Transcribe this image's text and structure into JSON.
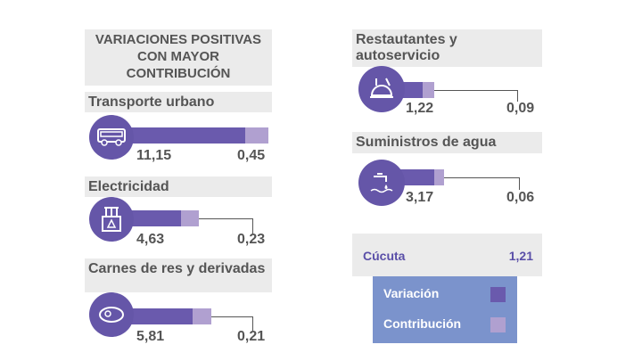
{
  "title": "VARIACIONES POSITIVAS CON MAYOR CONTRIBUCIÓN",
  "colors": {
    "variation": "#6a5aad",
    "contribution": "#b0a0d0",
    "legend_bg": "#7b93cc"
  },
  "items": [
    {
      "label": "Transporte urbano",
      "icon": "bus-icon",
      "variation": "11,15",
      "contribution": "0,45"
    },
    {
      "label": "Electricidad",
      "icon": "electric-tower-icon",
      "variation": "4,63",
      "contribution": "0,23"
    },
    {
      "label": "Carnes de res y derivadas",
      "icon": "steak-icon",
      "variation": "5,81",
      "contribution": "0,21"
    },
    {
      "label": "Restautantes y autoservicio",
      "icon": "restaurant-icon",
      "variation": "1,22",
      "contribution": "0,09"
    },
    {
      "label": "Suministros de agua",
      "icon": "water-tap-icon",
      "variation": "3,17",
      "contribution": "0,06"
    }
  ],
  "city": {
    "name": "Cúcuta",
    "value": "1,21"
  },
  "legend": {
    "variation": "Variación",
    "contribution": "Contribución"
  }
}
